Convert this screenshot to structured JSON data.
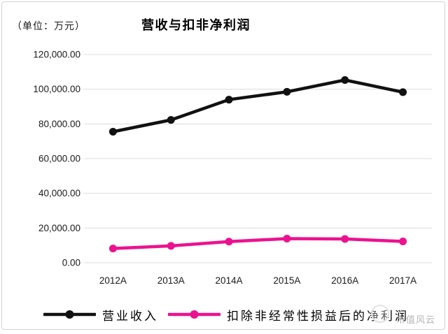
{
  "header": {
    "unit_label": "（单位：万元）",
    "title": "营收与扣非净利润"
  },
  "watermark": {
    "text": "市值风云"
  },
  "colors": {
    "revenue_series": "#111111",
    "profit_series": "#ec128f",
    "gridline": "#dcdcdc",
    "axis_text": "#1a1a1a",
    "watermark_text": "#b5b5b5",
    "card_border": "#d2d2d2"
  },
  "chart_data": {
    "type": "line",
    "title": "营收与扣非净利润",
    "unit": "万元",
    "categories": [
      "2012A",
      "2013A",
      "2014A",
      "2015A",
      "2016A",
      "2017A"
    ],
    "series": [
      {
        "name": "营业收入",
        "color": "#111111",
        "values": [
          75500,
          82300,
          94000,
          98500,
          105300,
          98300
        ]
      },
      {
        "name": "扣除非经常性损益后的净利润",
        "color": "#ec128f",
        "values": [
          8200,
          9700,
          12200,
          13900,
          13700,
          12300
        ]
      }
    ],
    "ylim": [
      0,
      120000
    ],
    "y_tick_step": 20000,
    "y_tick_labels": [
      "0.00",
      "20,000.00",
      "40,000.00",
      "60,000.00",
      "80,000.00",
      "100,000.00",
      "120,000.00"
    ],
    "grid": "horizontal-only",
    "legend_position": "bottom",
    "marker": "circle"
  }
}
